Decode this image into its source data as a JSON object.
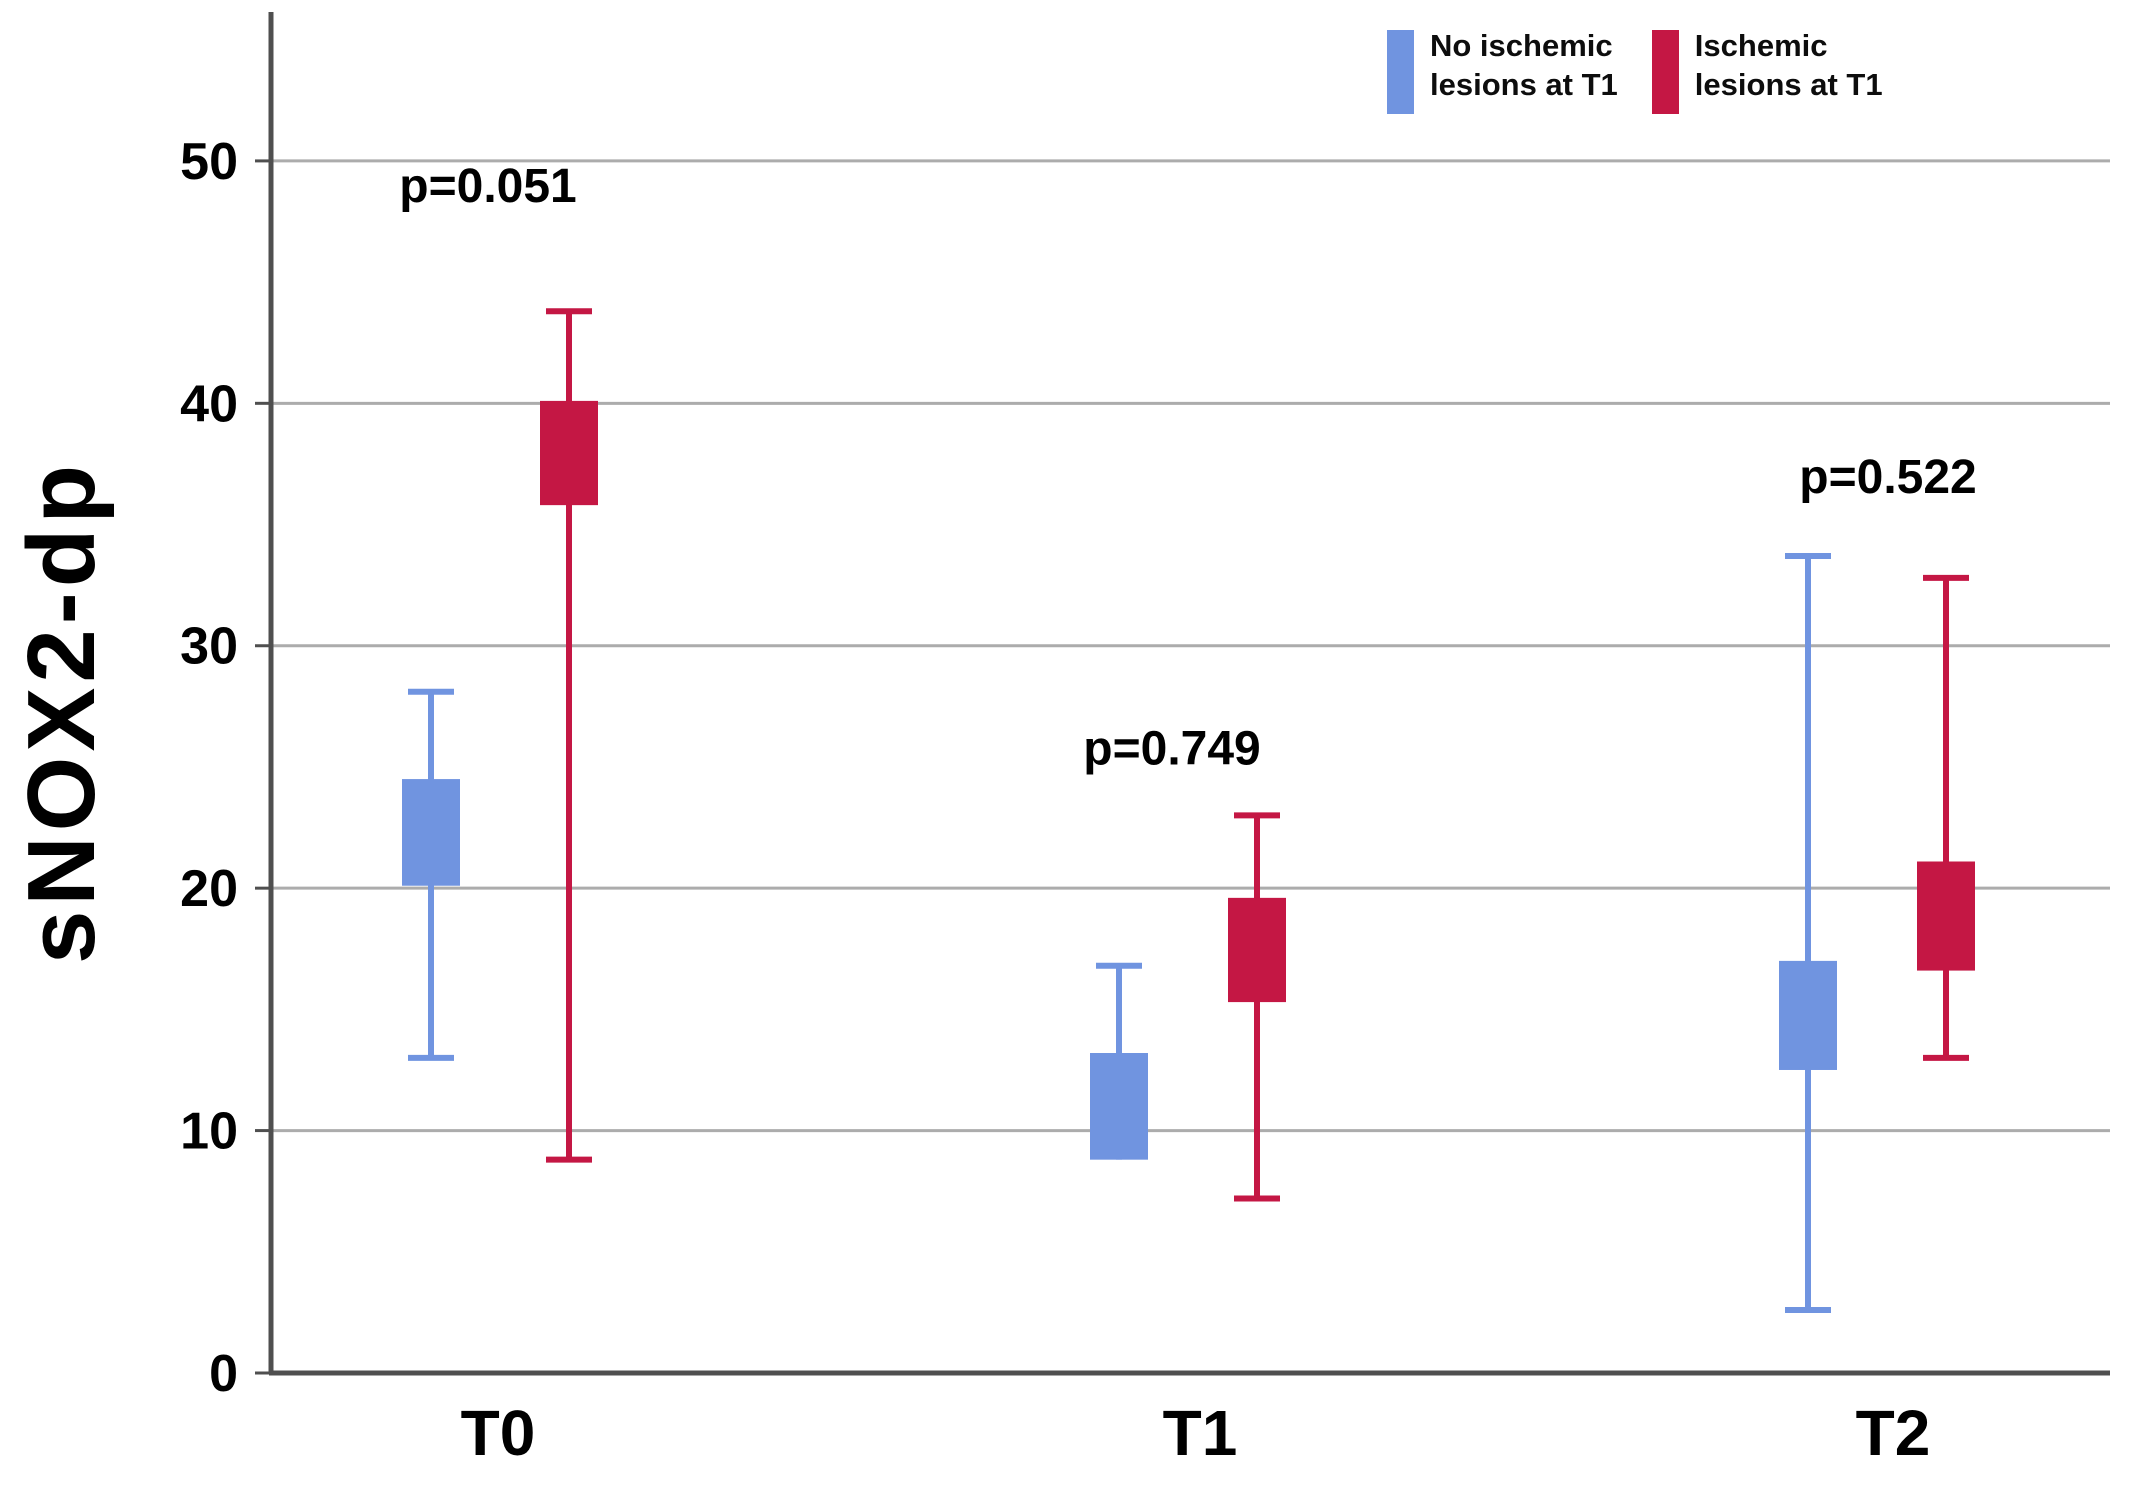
{
  "chart_data": {
    "type": "box",
    "title": "",
    "xlabel": "",
    "ylabel": "sNOX2-dp",
    "ylim": [
      0,
      56
    ],
    "yticks": [
      0,
      10,
      20,
      30,
      40,
      50
    ],
    "categories": [
      "T0",
      "T1",
      "T2"
    ],
    "grid": "horizontal",
    "legend_position": "top-right",
    "series": [
      {
        "name": "No ischemic lesions at T1",
        "color": "#7094E0",
        "boxes": [
          {
            "category": "T0",
            "whisker_low": 13.0,
            "q1": 20.1,
            "q3": 24.5,
            "whisker_high": 28.1
          },
          {
            "category": "T1",
            "whisker_low": null,
            "q1": 8.8,
            "q3": 13.2,
            "whisker_high": 16.8
          },
          {
            "category": "T2",
            "whisker_low": 2.6,
            "q1": 12.5,
            "q3": 17.0,
            "whisker_high": 33.7
          }
        ]
      },
      {
        "name": "Ischemic lesions at T1",
        "color": "#C41744",
        "boxes": [
          {
            "category": "T0",
            "whisker_low": 8.8,
            "q1": 35.8,
            "q3": 40.1,
            "whisker_high": 43.8
          },
          {
            "category": "T1",
            "whisker_low": 7.2,
            "q1": 15.3,
            "q3": 19.6,
            "whisker_high": 23.0
          },
          {
            "category": "T2",
            "whisker_low": 13.0,
            "q1": 16.6,
            "q3": 21.1,
            "whisker_high": 32.8
          }
        ]
      }
    ],
    "annotations": [
      {
        "text": "p=0.051",
        "category": "T0",
        "y": 49.0
      },
      {
        "text": "p=0.749",
        "category": "T1",
        "y": 25.8
      },
      {
        "text": "p=0.522",
        "category": "T2",
        "y": 37.0
      }
    ]
  },
  "legend": {
    "items": [
      {
        "label": "No ischemic\nlesions at T1",
        "color": "#7094E0"
      },
      {
        "label": "Ischemic\nlesions at T1",
        "color": "#C41744"
      }
    ]
  },
  "colors": {
    "axis": "#4F4F4F",
    "gridline": "#ACACAC",
    "text": "#000000"
  }
}
